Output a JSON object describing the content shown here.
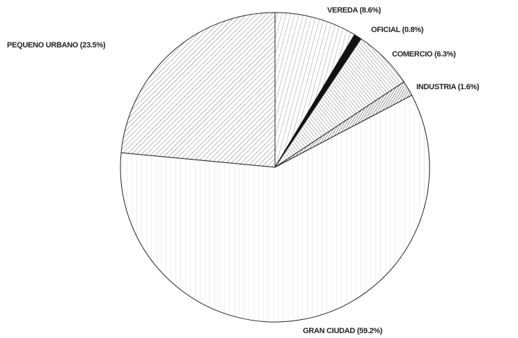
{
  "chart_data": {
    "type": "pie",
    "categories": [
      "VEREDA",
      "OFICIAL",
      "COMERCIO",
      "INDUSTRIA",
      "GRAN CIUDAD",
      "PEQUENO URBANO"
    ],
    "values": [
      8.6,
      0.8,
      6.3,
      1.6,
      59.2,
      23.5
    ],
    "value_labels": [
      "(8.6%)",
      "(0.8%)",
      "(6.3%)",
      "(1.6%)",
      "(59.2%)",
      "(23.5%)"
    ]
  }
}
